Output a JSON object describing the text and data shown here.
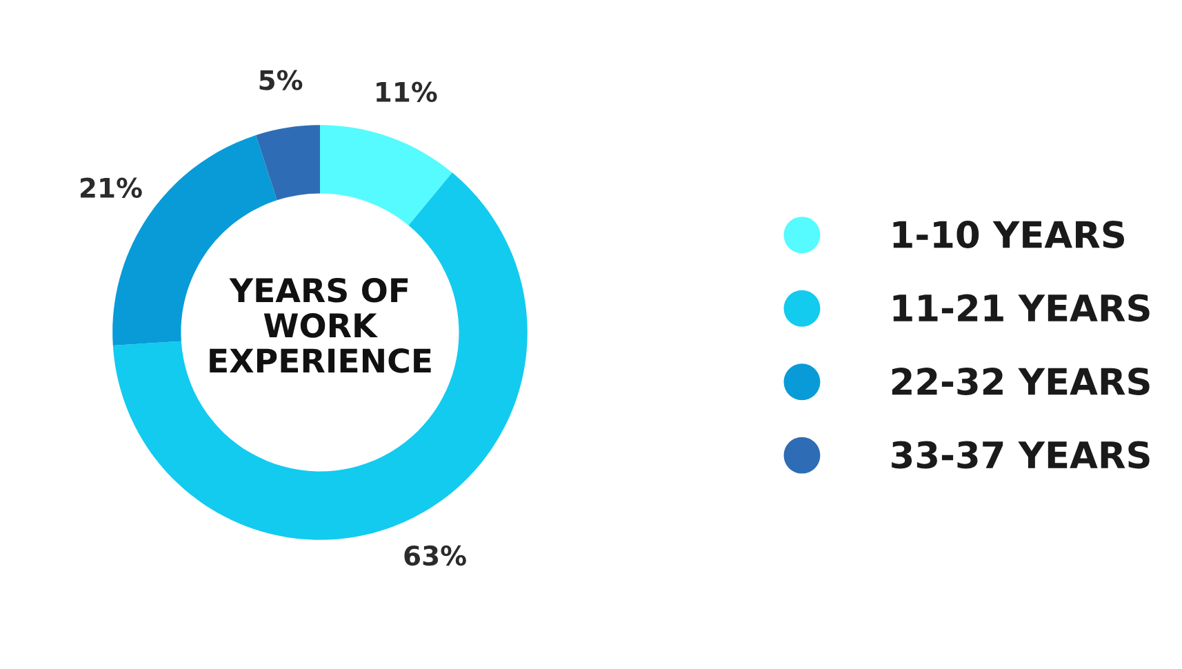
{
  "chart_data": {
    "type": "donut",
    "title": "YEARS OF\nWORK\nEXPERIENCE",
    "categories": [
      "1-10 YEARS",
      "11-21 YEARS",
      "22-32 YEARS",
      "33-37 YEARS"
    ],
    "values": [
      11,
      63,
      21,
      5
    ],
    "colors": [
      "#55fbfe",
      "#12cbef",
      "#089bd8",
      "#2e6db5"
    ],
    "value_labels": [
      "11%",
      "63%",
      "21%",
      "5%"
    ],
    "legend": "right"
  }
}
